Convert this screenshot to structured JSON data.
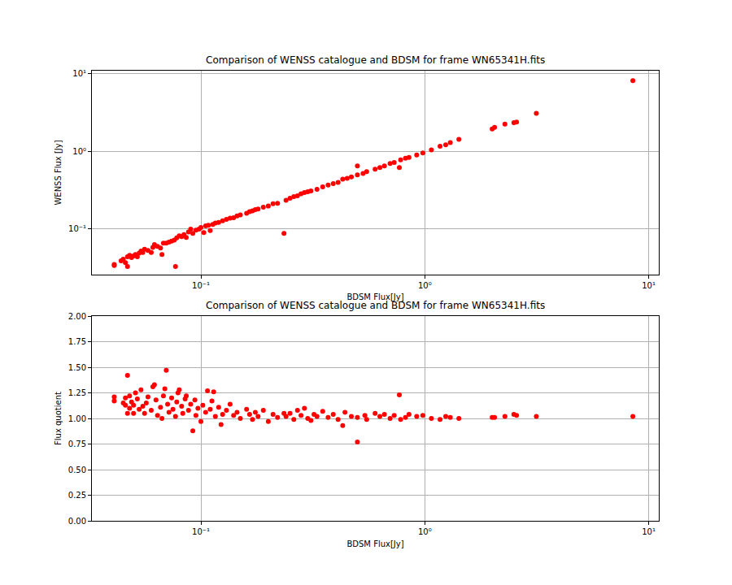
{
  "chart_data": [
    {
      "type": "scatter",
      "title": "Comparison of WENSS catalogue and BDSM for frame WN65341H.fits",
      "x_label": "BDSM Flux[Jy]",
      "y_label": "WENSS Flux [Jy]",
      "log": true,
      "grid": true,
      "color": "#ff0000",
      "marker": "circle",
      "xlim": [
        0.0326,
        11.1
      ],
      "ylim": [
        0.0259,
        11.0
      ],
      "xticks": [
        {
          "value": 0.1,
          "label": "10⁻¹"
        },
        {
          "value": 1,
          "label": "10⁰"
        },
        {
          "value": 10,
          "label": "10¹"
        }
      ],
      "yticks": [
        {
          "value": 0.1,
          "label": "10⁻¹"
        },
        {
          "value": 1,
          "label": "10⁰"
        },
        {
          "value": 10,
          "label": "10¹"
        }
      ],
      "x": [
        0.041,
        0.041,
        0.044,
        0.045,
        0.046,
        0.047,
        0.047,
        0.048,
        0.049,
        0.05,
        0.051,
        0.052,
        0.053,
        0.054,
        0.055,
        0.056,
        0.058,
        0.06,
        0.061,
        0.062,
        0.064,
        0.066,
        0.067,
        0.068,
        0.07,
        0.072,
        0.074,
        0.076,
        0.077,
        0.078,
        0.08,
        0.082,
        0.084,
        0.086,
        0.088,
        0.09,
        0.092,
        0.095,
        0.098,
        0.1,
        0.103,
        0.105,
        0.108,
        0.11,
        0.113,
        0.116,
        0.12,
        0.125,
        0.13,
        0.135,
        0.14,
        0.145,
        0.15,
        0.16,
        0.165,
        0.17,
        0.175,
        0.18,
        0.19,
        0.2,
        0.21,
        0.22,
        0.235,
        0.24,
        0.25,
        0.26,
        0.27,
        0.28,
        0.29,
        0.3,
        0.31,
        0.33,
        0.35,
        0.37,
        0.39,
        0.41,
        0.43,
        0.45,
        0.47,
        0.5,
        0.5,
        0.53,
        0.55,
        0.6,
        0.63,
        0.66,
        0.7,
        0.73,
        0.77,
        0.78,
        0.82,
        0.85,
        0.92,
        0.98,
        1.07,
        1.17,
        1.24,
        1.3,
        1.42,
        2.0,
        2.05,
        2.28,
        2.5,
        2.57,
        3.15,
        8.5
      ],
      "values": [
        0.034,
        0.035,
        0.039,
        0.041,
        0.037,
        0.033,
        0.044,
        0.046,
        0.043,
        0.045,
        0.047,
        0.044,
        0.049,
        0.052,
        0.05,
        0.055,
        0.053,
        0.05,
        0.058,
        0.063,
        0.06,
        0.057,
        0.047,
        0.066,
        0.066,
        0.068,
        0.07,
        0.072,
        0.033,
        0.077,
        0.082,
        0.08,
        0.085,
        0.078,
        0.092,
        0.1,
        0.088,
        0.097,
        0.1,
        0.105,
        0.09,
        0.11,
        0.112,
        0.096,
        0.115,
        0.12,
        0.122,
        0.128,
        0.133,
        0.138,
        0.14,
        0.148,
        0.152,
        0.16,
        0.168,
        0.172,
        0.178,
        0.181,
        0.192,
        0.198,
        0.212,
        0.215,
        0.088,
        0.235,
        0.25,
        0.262,
        0.268,
        0.285,
        0.295,
        0.302,
        0.31,
        0.325,
        0.35,
        0.37,
        0.385,
        0.4,
        0.44,
        0.45,
        0.47,
        0.65,
        0.5,
        0.52,
        0.55,
        0.59,
        0.62,
        0.65,
        0.7,
        0.72,
        0.62,
        0.78,
        0.82,
        0.84,
        0.9,
        0.96,
        1.05,
        1.17,
        1.22,
        1.3,
        1.43,
        1.95,
        2.05,
        2.25,
        2.35,
        2.4,
        3.1,
        8.2
      ]
    },
    {
      "type": "scatter",
      "title": "Comparison of WENSS catalogue and BDSM for frame WN65341H.fits",
      "x_label": "BDSM Flux[Jy]",
      "y_label": "Flux quotient",
      "log": "x",
      "grid": true,
      "color": "#ff0000",
      "marker": "circle",
      "xlim": [
        0.0326,
        11.1
      ],
      "ylim": [
        0,
        2
      ],
      "xticks": [
        {
          "value": 0.1,
          "label": "10⁻¹"
        },
        {
          "value": 1,
          "label": "10⁰"
        },
        {
          "value": 10,
          "label": "10¹"
        }
      ],
      "yticks": [
        {
          "value": 0,
          "label": "0.00"
        },
        {
          "value": 0.25,
          "label": "0.25"
        },
        {
          "value": 0.5,
          "label": "0.50"
        },
        {
          "value": 0.75,
          "label": "0.75"
        },
        {
          "value": 1,
          "label": "1.00"
        },
        {
          "value": 1.25,
          "label": "1.25"
        },
        {
          "value": 1.5,
          "label": "1.50"
        },
        {
          "value": 1.75,
          "label": "1.75"
        },
        {
          "value": 2,
          "label": "2.00"
        }
      ],
      "x": [
        0.041,
        0.041,
        0.045,
        0.046,
        0.046,
        0.047,
        0.047,
        0.048,
        0.048,
        0.049,
        0.05,
        0.05,
        0.051,
        0.052,
        0.053,
        0.054,
        0.055,
        0.056,
        0.057,
        0.058,
        0.06,
        0.061,
        0.062,
        0.063,
        0.064,
        0.066,
        0.067,
        0.068,
        0.069,
        0.07,
        0.071,
        0.072,
        0.074,
        0.075,
        0.077,
        0.078,
        0.079,
        0.08,
        0.082,
        0.083,
        0.085,
        0.086,
        0.088,
        0.09,
        0.092,
        0.094,
        0.095,
        0.097,
        0.1,
        0.102,
        0.105,
        0.107,
        0.11,
        0.112,
        0.114,
        0.116,
        0.12,
        0.123,
        0.125,
        0.13,
        0.135,
        0.14,
        0.145,
        0.15,
        0.16,
        0.165,
        0.17,
        0.175,
        0.18,
        0.19,
        0.2,
        0.21,
        0.22,
        0.235,
        0.24,
        0.25,
        0.26,
        0.27,
        0.28,
        0.29,
        0.3,
        0.31,
        0.32,
        0.33,
        0.35,
        0.37,
        0.39,
        0.41,
        0.43,
        0.44,
        0.47,
        0.5,
        0.5,
        0.54,
        0.55,
        0.6,
        0.63,
        0.66,
        0.7,
        0.73,
        0.77,
        0.78,
        0.82,
        0.85,
        0.92,
        0.98,
        1.07,
        1.17,
        1.24,
        1.3,
        1.42,
        2.0,
        2.05,
        2.28,
        2.5,
        2.57,
        3.15,
        8.5
      ],
      "values": [
        1.17,
        1.21,
        1.15,
        1.13,
        1.2,
        1.05,
        1.42,
        1.22,
        1.1,
        1.16,
        1.05,
        1.13,
        1.25,
        1.19,
        1.09,
        1.28,
        1.12,
        1.05,
        1.15,
        1.21,
        1.08,
        1.31,
        1.33,
        1.18,
        1.03,
        1.11,
        1.0,
        1.22,
        1.29,
        1.47,
        1.14,
        1.06,
        1.2,
        1.09,
        1.02,
        1.16,
        1.25,
        1.28,
        1.12,
        1.05,
        1.19,
        1.22,
        1.08,
        1.14,
        0.88,
        1.18,
        1.03,
        1.1,
        0.97,
        1.13,
        1.06,
        1.27,
        1.09,
        1.17,
        1.26,
        1.02,
        1.11,
        0.94,
        1.04,
        1.08,
        1.14,
        1.03,
        1.06,
        1.0,
        1.09,
        1.04,
        0.99,
        1.06,
        1.02,
        1.08,
        0.97,
        1.04,
        1.01,
        1.05,
        1.02,
        1.05,
        0.99,
        1.08,
        1.03,
        1.1,
        1.0,
        0.98,
        1.04,
        1.02,
        1.07,
        1.01,
        1.04,
        0.99,
        0.93,
        1.06,
        1.02,
        0.77,
        1.01,
        1.03,
        0.99,
        1.05,
        1.02,
        1.04,
        1.0,
        1.03,
        1.23,
        0.99,
        1.01,
        1.04,
        1.02,
        1.03,
        1.0,
        0.99,
        1.02,
        1.01,
        1.0,
        1.01,
        1.01,
        1.02,
        1.04,
        1.03,
        1.02,
        1.02
      ]
    }
  ]
}
